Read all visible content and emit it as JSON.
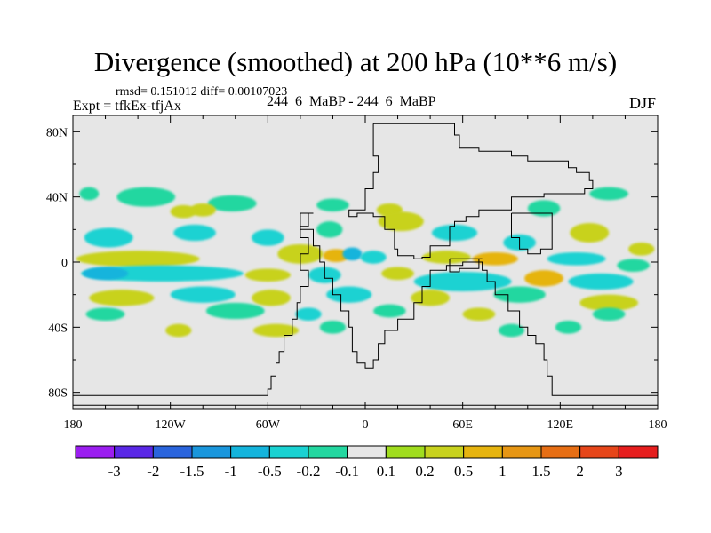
{
  "header": {
    "title": "Divergence (smoothed) at 200 hPa (10**6 m/s)",
    "stats": "rmsd= 0.151012 diff= 0.00107023",
    "expt": "Expt = tfkEx-tfjAx",
    "center_label": "244_6_MaBP - 244_6_MaBP",
    "season": "DJF"
  },
  "chart_data": {
    "type": "heatmap",
    "title": "Divergence (smoothed) at 200 hPa (10**6 m/s)",
    "x_ticks": [
      "180",
      "120W",
      "60W",
      "0",
      "60E",
      "120E",
      "180"
    ],
    "x_tick_values": [
      -180,
      -120,
      -60,
      0,
      60,
      120,
      180
    ],
    "y_ticks": [
      "80N",
      "40N",
      "0",
      "40S",
      "80S"
    ],
    "y_tick_values": [
      80,
      40,
      0,
      -40,
      -80
    ],
    "xlim": [
      -180,
      180
    ],
    "ylim": [
      -90,
      90
    ],
    "colorbar_labels": [
      "-3",
      "-2",
      "-1.5",
      "-1",
      "-0.5",
      "-0.2",
      "-0.1",
      "0.1",
      "0.2",
      "0.5",
      "1",
      "1.5",
      "2",
      "3"
    ],
    "colorbar_colors": [
      "#9b1ef0",
      "#5a28e6",
      "#2a64dc",
      "#1a96dc",
      "#14b4dc",
      "#1ad2d2",
      "#23d7a0",
      "#e6e6e6",
      "#a0dc1e",
      "#c8d21e",
      "#e6b40f",
      "#e69614",
      "#e66e14",
      "#e6461a",
      "#e61e1e"
    ],
    "neutral_color": "#e6e6e6",
    "blobs": [
      {
        "lon": -170,
        "lat": 42,
        "rx": 6,
        "ry": 4,
        "level": "-0.1"
      },
      {
        "lon": -135,
        "lat": 40,
        "rx": 18,
        "ry": 6,
        "level": "-0.1"
      },
      {
        "lon": -82,
        "lat": 36,
        "rx": 15,
        "ry": 5,
        "level": "-0.1"
      },
      {
        "lon": -100,
        "lat": 32,
        "rx": 8,
        "ry": 4,
        "level": "0.2"
      },
      {
        "lon": -112,
        "lat": 31,
        "rx": 8,
        "ry": 4,
        "level": "0.2"
      },
      {
        "lon": -20,
        "lat": 35,
        "rx": 10,
        "ry": 4,
        "level": "-0.1"
      },
      {
        "lon": 15,
        "lat": 32,
        "rx": 8,
        "ry": 4,
        "level": "0.2"
      },
      {
        "lon": 110,
        "lat": 33,
        "rx": 10,
        "ry": 5,
        "level": "-0.1"
      },
      {
        "lon": 150,
        "lat": 42,
        "rx": 12,
        "ry": 4,
        "level": "-0.1"
      },
      {
        "lon": -158,
        "lat": 15,
        "rx": 15,
        "ry": 6,
        "level": "-0.2"
      },
      {
        "lon": -105,
        "lat": 18,
        "rx": 13,
        "ry": 5,
        "level": "-0.2"
      },
      {
        "lon": -60,
        "lat": 15,
        "rx": 10,
        "ry": 5,
        "level": "-0.2"
      },
      {
        "lon": -22,
        "lat": 20,
        "rx": 8,
        "ry": 5,
        "level": "-0.1"
      },
      {
        "lon": 22,
        "lat": 25,
        "rx": 14,
        "ry": 6,
        "level": "0.2"
      },
      {
        "lon": 55,
        "lat": 18,
        "rx": 14,
        "ry": 5,
        "level": "-0.2"
      },
      {
        "lon": 95,
        "lat": 12,
        "rx": 10,
        "ry": 5,
        "level": "-0.2"
      },
      {
        "lon": 138,
        "lat": 18,
        "rx": 12,
        "ry": 6,
        "level": "0.2"
      },
      {
        "lon": 170,
        "lat": 8,
        "rx": 8,
        "ry": 4,
        "level": "0.2"
      },
      {
        "lon": -140,
        "lat": 2,
        "rx": 38,
        "ry": 5,
        "level": "0.2"
      },
      {
        "lon": -40,
        "lat": 5,
        "rx": 14,
        "ry": 6,
        "level": "0.2"
      },
      {
        "lon": -18,
        "lat": 4,
        "rx": 8,
        "ry": 4,
        "level": "0.5"
      },
      {
        "lon": -8,
        "lat": 5,
        "rx": 6,
        "ry": 4,
        "level": "-0.5"
      },
      {
        "lon": 5,
        "lat": 3,
        "rx": 8,
        "ry": 4,
        "level": "-0.2"
      },
      {
        "lon": 50,
        "lat": 3,
        "rx": 15,
        "ry": 4,
        "level": "0.2"
      },
      {
        "lon": 80,
        "lat": 2,
        "rx": 14,
        "ry": 4,
        "level": "0.5"
      },
      {
        "lon": 130,
        "lat": 2,
        "rx": 18,
        "ry": 4,
        "level": "-0.2"
      },
      {
        "lon": 165,
        "lat": -2,
        "rx": 10,
        "ry": 4,
        "level": "-0.1"
      },
      {
        "lon": -125,
        "lat": -7,
        "rx": 50,
        "ry": 5,
        "level": "-0.2"
      },
      {
        "lon": -160,
        "lat": -7,
        "rx": 14,
        "ry": 4,
        "level": "-0.5"
      },
      {
        "lon": -60,
        "lat": -8,
        "rx": 14,
        "ry": 4,
        "level": "0.2"
      },
      {
        "lon": -25,
        "lat": -8,
        "rx": 10,
        "ry": 5,
        "level": "-0.2"
      },
      {
        "lon": 20,
        "lat": -7,
        "rx": 10,
        "ry": 4,
        "level": "0.2"
      },
      {
        "lon": 60,
        "lat": -12,
        "rx": 30,
        "ry": 6,
        "level": "-0.2"
      },
      {
        "lon": 110,
        "lat": -10,
        "rx": 12,
        "ry": 5,
        "level": "0.5"
      },
      {
        "lon": 145,
        "lat": -12,
        "rx": 20,
        "ry": 5,
        "level": "-0.2"
      },
      {
        "lon": -150,
        "lat": -22,
        "rx": 20,
        "ry": 5,
        "level": "0.2"
      },
      {
        "lon": -100,
        "lat": -20,
        "rx": 20,
        "ry": 5,
        "level": "-0.2"
      },
      {
        "lon": -58,
        "lat": -22,
        "rx": 12,
        "ry": 5,
        "level": "0.2"
      },
      {
        "lon": -10,
        "lat": -20,
        "rx": 14,
        "ry": 5,
        "level": "-0.2"
      },
      {
        "lon": 40,
        "lat": -22,
        "rx": 12,
        "ry": 5,
        "level": "0.2"
      },
      {
        "lon": 95,
        "lat": -20,
        "rx": 16,
        "ry": 5,
        "level": "-0.1"
      },
      {
        "lon": 150,
        "lat": -25,
        "rx": 18,
        "ry": 5,
        "level": "0.2"
      },
      {
        "lon": -160,
        "lat": -32,
        "rx": 12,
        "ry": 4,
        "level": "-0.1"
      },
      {
        "lon": -80,
        "lat": -30,
        "rx": 18,
        "ry": 5,
        "level": "-0.1"
      },
      {
        "lon": -35,
        "lat": -32,
        "rx": 8,
        "ry": 4,
        "level": "-0.2"
      },
      {
        "lon": 15,
        "lat": -30,
        "rx": 10,
        "ry": 4,
        "level": "-0.1"
      },
      {
        "lon": 70,
        "lat": -32,
        "rx": 10,
        "ry": 4,
        "level": "0.2"
      },
      {
        "lon": 150,
        "lat": -32,
        "rx": 10,
        "ry": 4,
        "level": "-0.1"
      },
      {
        "lon": -115,
        "lat": -42,
        "rx": 8,
        "ry": 4,
        "level": "0.2"
      },
      {
        "lon": -55,
        "lat": -42,
        "rx": 14,
        "ry": 4,
        "level": "0.2"
      },
      {
        "lon": -20,
        "lat": -40,
        "rx": 8,
        "ry": 4,
        "level": "-0.1"
      },
      {
        "lon": 90,
        "lat": -42,
        "rx": 8,
        "ry": 4,
        "level": "-0.1"
      },
      {
        "lon": 125,
        "lat": -40,
        "rx": 8,
        "ry": 4,
        "level": "-0.1"
      }
    ],
    "continent_outlines": [
      {
        "name": "greenland",
        "points": [
          [
            5,
            85
          ],
          [
            45,
            85
          ],
          [
            55,
            78
          ],
          [
            58,
            70
          ],
          [
            70,
            68
          ],
          [
            90,
            65
          ],
          [
            100,
            62
          ],
          [
            120,
            62
          ],
          [
            125,
            58
          ],
          [
            130,
            55
          ],
          [
            138,
            50
          ],
          [
            140,
            45
          ],
          [
            135,
            42
          ],
          [
            110,
            40
          ],
          [
            95,
            40
          ],
          [
            90,
            32
          ],
          [
            78,
            32
          ],
          [
            70,
            28
          ],
          [
            62,
            25
          ],
          [
            55,
            22
          ],
          [
            52,
            10
          ],
          [
            45,
            10
          ],
          [
            40,
            3
          ],
          [
            35,
            2
          ],
          [
            30,
            4
          ],
          [
            20,
            8
          ],
          [
            18,
            20
          ],
          [
            12,
            28
          ],
          [
            5,
            30
          ],
          [
            -5,
            28
          ],
          [
            -10,
            32
          ],
          [
            0,
            45
          ],
          [
            5,
            55
          ],
          [
            8,
            65
          ],
          [
            5,
            75
          ],
          [
            5,
            85
          ]
        ]
      },
      {
        "name": "south-landmass",
        "points": [
          [
            -40,
            30
          ],
          [
            -32,
            30
          ],
          [
            -35,
            22
          ],
          [
            -40,
            15
          ],
          [
            -35,
            5
          ],
          [
            -40,
            -5
          ],
          [
            -35,
            -15
          ],
          [
            -40,
            -25
          ],
          [
            -42,
            -35
          ],
          [
            -45,
            -45
          ],
          [
            -50,
            -55
          ],
          [
            -53,
            -62
          ],
          [
            -55,
            -70
          ],
          [
            -58,
            -78
          ],
          [
            -60,
            -82
          ],
          [
            -180,
            -82
          ],
          [
            -180,
            -88
          ],
          [
            180,
            -88
          ],
          [
            180,
            -82
          ],
          [
            120,
            -82
          ],
          [
            115,
            -78
          ],
          [
            115,
            -70
          ],
          [
            112,
            -60
          ],
          [
            110,
            -50
          ],
          [
            105,
            -45
          ],
          [
            100,
            -40
          ],
          [
            95,
            -30
          ],
          [
            88,
            -20
          ],
          [
            80,
            -12
          ],
          [
            75,
            -5
          ],
          [
            72,
            0
          ],
          [
            60,
            -2
          ],
          [
            50,
            -5
          ],
          [
            40,
            -15
          ],
          [
            35,
            -25
          ],
          [
            30,
            -35
          ],
          [
            20,
            -42
          ],
          [
            12,
            -50
          ],
          [
            8,
            -60
          ],
          [
            5,
            -65
          ],
          [
            0,
            -62
          ],
          [
            -5,
            -55
          ],
          [
            -8,
            -40
          ],
          [
            -10,
            -30
          ],
          [
            -15,
            -20
          ],
          [
            -20,
            -10
          ],
          [
            -25,
            0
          ],
          [
            -28,
            10
          ],
          [
            -32,
            20
          ],
          [
            -40,
            30
          ]
        ]
      },
      {
        "name": "island-east",
        "points": [
          [
            90,
            30
          ],
          [
            110,
            30
          ],
          [
            115,
            20
          ],
          [
            115,
            8
          ],
          [
            108,
            5
          ],
          [
            100,
            8
          ],
          [
            95,
            15
          ],
          [
            90,
            20
          ],
          [
            90,
            30
          ]
        ]
      },
      {
        "name": "island-mid",
        "points": [
          [
            52,
            2
          ],
          [
            72,
            2
          ],
          [
            70,
            -4
          ],
          [
            58,
            -6
          ],
          [
            52,
            -2
          ],
          [
            52,
            2
          ]
        ]
      }
    ]
  }
}
